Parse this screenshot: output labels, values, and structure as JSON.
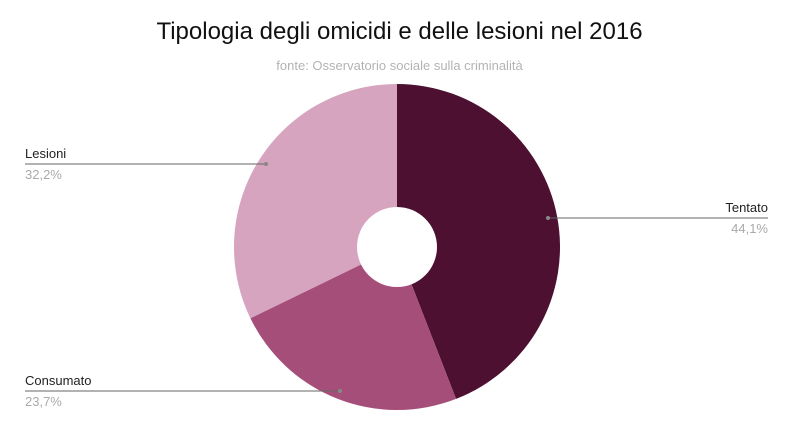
{
  "chart_data": {
    "type": "pie",
    "donut": true,
    "title": "Tipologia degli omicidi e delle lesioni nel 2016",
    "subtitle": "fonte: Osservatorio sociale sulla criminalità",
    "categories": [
      "Tentato",
      "Consumato",
      "Lesioni"
    ],
    "values": [
      44.1,
      23.7,
      32.2
    ],
    "labels": [
      "44,1%",
      "23,7%",
      "32,2%"
    ],
    "colors": [
      "#4d1030",
      "#a64e7a",
      "#d6a4bf"
    ],
    "legend": "callout labels"
  }
}
